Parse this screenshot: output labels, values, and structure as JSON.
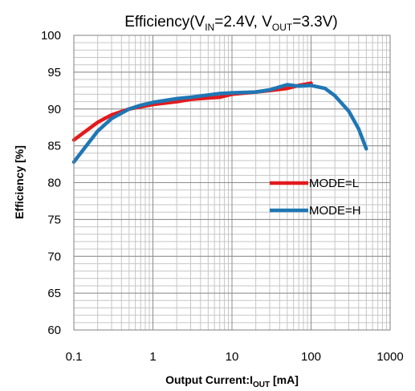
{
  "chart_data": {
    "type": "line",
    "title": {
      "prefix": "Efficiency(V",
      "vin_sub": "IN",
      "mid": "=2.4V, V",
      "vout_sub": "OUT",
      "suffix": "=3.3V)"
    },
    "xlabel": {
      "prefix": "Output Current:I",
      "sub": "OUT",
      "suffix": " [mA]"
    },
    "ylabel": "Efficiency [%]",
    "x_scale": "log",
    "xlim": [
      0.1,
      1000
    ],
    "ylim": [
      60,
      100
    ],
    "x_ticks": [
      0.1,
      1,
      10,
      100,
      1000
    ],
    "x_tick_labels": [
      "0.1",
      "1",
      "10",
      "100",
      "1000"
    ],
    "y_ticks": [
      60,
      65,
      70,
      75,
      80,
      85,
      90,
      95,
      100
    ],
    "y_tick_labels": [
      "60",
      "65",
      "70",
      "75",
      "80",
      "85",
      "90",
      "95",
      "100"
    ],
    "grid": true,
    "legend_position": "right",
    "series": [
      {
        "name": "MODE=L",
        "color": "#e31a1c",
        "x": [
          0.1,
          0.2,
          0.3,
          0.5,
          0.7,
          1,
          2,
          3,
          5,
          7,
          10,
          20,
          30,
          50,
          70,
          100
        ],
        "y": [
          85.8,
          88.2,
          89.2,
          90.0,
          90.3,
          90.6,
          91.0,
          91.3,
          91.5,
          91.6,
          92.0,
          92.3,
          92.5,
          92.8,
          93.2,
          93.5
        ]
      },
      {
        "name": "MODE=H",
        "color": "#1f77b4",
        "x": [
          0.1,
          0.2,
          0.3,
          0.5,
          0.7,
          1,
          2,
          3,
          5,
          7,
          10,
          20,
          30,
          50,
          70,
          100,
          150,
          200,
          300,
          400,
          500
        ],
        "y": [
          82.8,
          87.0,
          88.7,
          90.0,
          90.5,
          90.9,
          91.4,
          91.6,
          91.9,
          92.1,
          92.2,
          92.3,
          92.6,
          93.3,
          93.1,
          93.2,
          92.8,
          91.8,
          89.7,
          87.3,
          84.6
        ]
      }
    ]
  }
}
